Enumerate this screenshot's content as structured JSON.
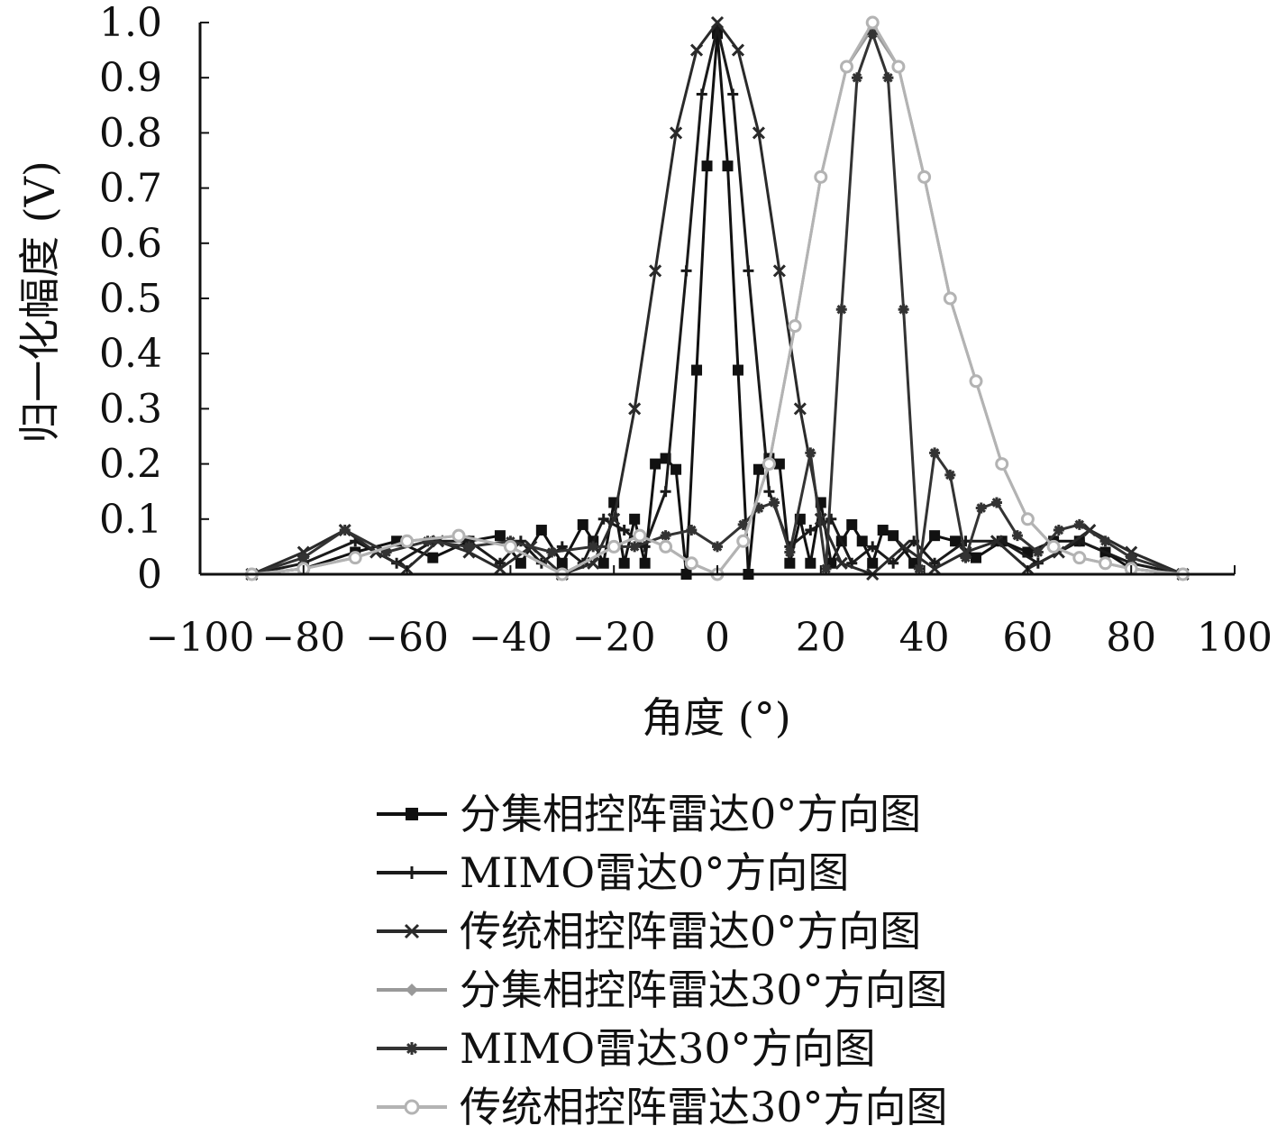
{
  "chart_data": {
    "type": "line",
    "title": "",
    "xlabel": "角度 (°)",
    "ylabel": "归一化幅度 (V)",
    "xlim": [
      -100,
      100
    ],
    "ylim": [
      0,
      1.0
    ],
    "xticks": [
      "−100",
      "−80",
      "−60",
      "−40",
      "−20",
      "0",
      "20",
      "40",
      "60",
      "80",
      "100"
    ],
    "yticks": [
      "0",
      "0.1",
      "0.2",
      "0.3",
      "0.4",
      "0.5",
      "0.6",
      "0.7",
      "0.8",
      "0.9",
      "1.0"
    ],
    "grid": false,
    "legend_position": "bottom",
    "series": [
      {
        "name": "分集相控阵雷达0°方向图",
        "marker": "square",
        "color": "#111111",
        "x": [
          -90,
          -80,
          -70,
          -62,
          -55,
          -48,
          -42,
          -38,
          -34,
          -30,
          -26,
          -24,
          -22,
          -20,
          -18,
          -16,
          -14,
          -12,
          -10,
          -8,
          -6,
          -4,
          -2,
          0,
          2,
          4,
          6,
          8,
          10,
          12,
          14,
          16,
          18,
          20,
          22,
          24,
          26,
          28,
          30,
          32,
          34,
          38,
          42,
          46,
          50,
          55,
          60,
          65,
          70,
          75,
          80,
          90
        ],
        "y": [
          0.0,
          0.01,
          0.04,
          0.06,
          0.03,
          0.06,
          0.07,
          0.02,
          0.08,
          0.02,
          0.09,
          0.06,
          0.02,
          0.13,
          0.02,
          0.1,
          0.02,
          0.2,
          0.21,
          0.19,
          0.0,
          0.37,
          0.74,
          0.98,
          0.74,
          0.37,
          0.0,
          0.19,
          0.21,
          0.2,
          0.02,
          0.1,
          0.02,
          0.13,
          0.02,
          0.06,
          0.09,
          0.06,
          0.02,
          0.08,
          0.07,
          0.02,
          0.07,
          0.06,
          0.03,
          0.06,
          0.04,
          0.06,
          0.06,
          0.04,
          0.01,
          0.0
        ]
      },
      {
        "name": "MIMO雷达0°方向图",
        "marker": "plus",
        "color": "#1a1a1a",
        "x": [
          -90,
          -80,
          -70,
          -62,
          -55,
          -48,
          -42,
          -38,
          -34,
          -30,
          -26,
          -22,
          -18,
          -14,
          -10,
          -6,
          -3,
          0,
          3,
          6,
          10,
          14,
          18,
          22,
          26,
          30,
          34,
          38,
          42,
          48,
          55,
          62,
          70,
          80,
          90
        ],
        "y": [
          0.0,
          0.02,
          0.06,
          0.02,
          0.06,
          0.06,
          0.02,
          0.06,
          0.02,
          0.05,
          0.02,
          0.1,
          0.08,
          0.05,
          0.15,
          0.55,
          0.87,
          0.99,
          0.87,
          0.55,
          0.15,
          0.05,
          0.08,
          0.1,
          0.02,
          0.05,
          0.02,
          0.06,
          0.02,
          0.06,
          0.06,
          0.02,
          0.06,
          0.02,
          0.0
        ]
      },
      {
        "name": "传统相控阵雷达0°方向图",
        "marker": "x",
        "color": "#2a2a2a",
        "x": [
          -90,
          -80,
          -72,
          -66,
          -60,
          -54,
          -48,
          -42,
          -36,
          -30,
          -24,
          -20,
          -16,
          -12,
          -8,
          -4,
          0,
          4,
          8,
          12,
          16,
          20,
          24,
          30,
          36,
          42,
          48,
          54,
          60,
          66,
          72,
          80,
          90
        ],
        "y": [
          0.0,
          0.04,
          0.08,
          0.04,
          0.01,
          0.06,
          0.04,
          0.01,
          0.05,
          0.0,
          0.02,
          0.1,
          0.3,
          0.55,
          0.8,
          0.95,
          1.0,
          0.95,
          0.8,
          0.55,
          0.3,
          0.1,
          0.02,
          0.0,
          0.05,
          0.01,
          0.04,
          0.06,
          0.01,
          0.04,
          0.08,
          0.04,
          0.0
        ]
      },
      {
        "name": "分集相控阵雷达30°方向图",
        "marker": "diamond",
        "color": "#999999",
        "x": [
          -90,
          -80,
          -70,
          -60,
          -50,
          -40,
          -30,
          -20,
          -15,
          -10,
          -5,
          0,
          5,
          10,
          15,
          20,
          25,
          30,
          35,
          40,
          45,
          50,
          55,
          60,
          65,
          70,
          75,
          80,
          90
        ],
        "y": [
          0.0,
          0.01,
          0.03,
          0.06,
          0.07,
          0.05,
          0.0,
          0.05,
          0.07,
          0.05,
          0.02,
          0.0,
          0.06,
          0.2,
          0.45,
          0.72,
          0.92,
          0.99,
          0.92,
          0.72,
          0.5,
          0.35,
          0.2,
          0.1,
          0.05,
          0.03,
          0.02,
          0.01,
          0.0
        ]
      },
      {
        "name": "MIMO雷达30°方向图",
        "marker": "star",
        "color": "#333333",
        "x": [
          -90,
          -80,
          -72,
          -64,
          -56,
          -48,
          -40,
          -32,
          -24,
          -16,
          -10,
          -5,
          0,
          5,
          8,
          11,
          14,
          18,
          21,
          24,
          27,
          30,
          33,
          36,
          39,
          42,
          45,
          48,
          51,
          54,
          58,
          62,
          66,
          70,
          75,
          80,
          90
        ],
        "y": [
          0.0,
          0.03,
          0.08,
          0.04,
          0.06,
          0.05,
          0.06,
          0.04,
          0.05,
          0.05,
          0.07,
          0.08,
          0.05,
          0.09,
          0.12,
          0.13,
          0.04,
          0.22,
          0.01,
          0.48,
          0.9,
          0.98,
          0.9,
          0.48,
          0.01,
          0.22,
          0.18,
          0.03,
          0.12,
          0.13,
          0.07,
          0.04,
          0.08,
          0.09,
          0.06,
          0.03,
          0.0
        ]
      },
      {
        "name": "传统相控阵雷达30°方向图",
        "marker": "circle",
        "color": "#b3b3b3",
        "x": [
          -90,
          -80,
          -70,
          -60,
          -50,
          -40,
          -30,
          -20,
          -15,
          -10,
          -5,
          0,
          5,
          10,
          15,
          20,
          25,
          30,
          35,
          40,
          45,
          50,
          55,
          60,
          65,
          70,
          75,
          80,
          90
        ],
        "y": [
          0.0,
          0.01,
          0.03,
          0.06,
          0.07,
          0.05,
          0.0,
          0.05,
          0.07,
          0.05,
          0.02,
          0.0,
          0.06,
          0.2,
          0.45,
          0.72,
          0.92,
          1.0,
          0.92,
          0.72,
          0.5,
          0.35,
          0.2,
          0.1,
          0.05,
          0.03,
          0.02,
          0.01,
          0.0
        ]
      }
    ]
  }
}
